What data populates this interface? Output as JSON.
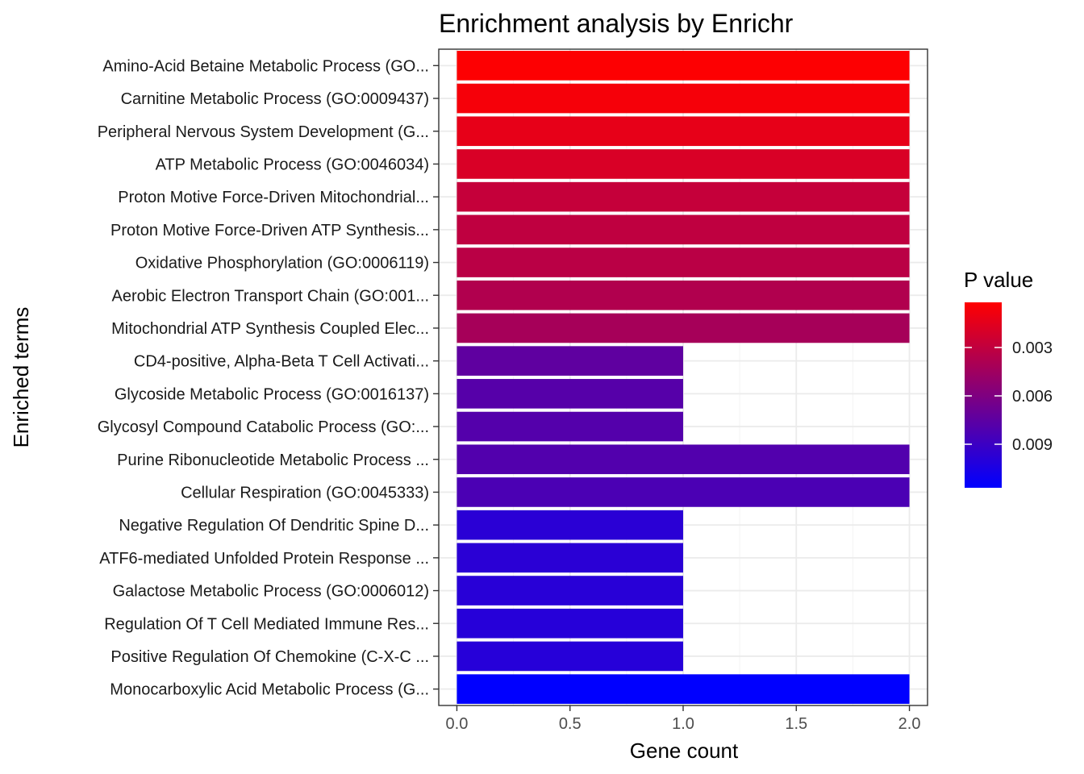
{
  "chart_data": {
    "type": "bar",
    "orientation": "horizontal",
    "title": "Enrichment analysis by Enrichr",
    "xlabel": "Gene count",
    "ylabel": "Enriched terms",
    "xlim": [
      -0.08,
      2.08
    ],
    "xticks": [
      "0.0",
      "0.5",
      "1.0",
      "1.5",
      "2.0"
    ],
    "xtick_values": [
      0,
      0.5,
      1,
      1.5,
      2
    ],
    "grid": true,
    "categories": [
      "Amino-Acid Betaine Metabolic Process (GO...",
      "Carnitine Metabolic Process (GO:0009437)",
      "Peripheral Nervous System Development (G...",
      "ATP Metabolic Process (GO:0046034)",
      "Proton Motive Force-Driven Mitochondrial...",
      "Proton Motive Force-Driven ATP Synthesis...",
      "Oxidative Phosphorylation (GO:0006119)",
      "Aerobic Electron Transport Chain (GO:001...",
      "Mitochondrial ATP Synthesis Coupled Elec...",
      "CD4-positive, Alpha-Beta T Cell Activati...",
      "Glycoside Metabolic Process (GO:0016137)",
      "Glycosyl Compound Catabolic Process (GO:...",
      "Purine Ribonucleotide Metabolic Process ...",
      "Cellular Respiration (GO:0045333)",
      "Negative Regulation Of Dendritic Spine D...",
      "ATF6-mediated Unfolded Protein Response ...",
      "Galactose Metabolic Process (GO:0006012)",
      "Regulation Of T Cell Mediated Immune Res...",
      "Positive Regulation Of Chemokine (C-X-C ...",
      "Monocarboxylic Acid Metabolic Process (G..."
    ],
    "values": [
      2,
      2,
      2,
      2,
      2,
      2,
      2,
      2,
      2,
      1,
      1,
      1,
      2,
      2,
      1,
      1,
      1,
      1,
      1,
      2
    ],
    "p_values": [
      0.0003,
      0.0006,
      0.0013,
      0.0019,
      0.0028,
      0.0031,
      0.0033,
      0.0037,
      0.0042,
      0.0074,
      0.0078,
      0.0079,
      0.008,
      0.0083,
      0.0098,
      0.0098,
      0.0099,
      0.01,
      0.01,
      0.0117
    ],
    "legend": {
      "title": "P value",
      "placement": "right",
      "type": "colorbar",
      "range": [
        0.0002,
        0.0117
      ],
      "ticks": [
        "0.003",
        "0.006",
        "0.009"
      ],
      "tick_values": [
        0.003,
        0.006,
        0.009
      ],
      "low_color": "#ff0000",
      "high_color": "#0000ff"
    }
  }
}
